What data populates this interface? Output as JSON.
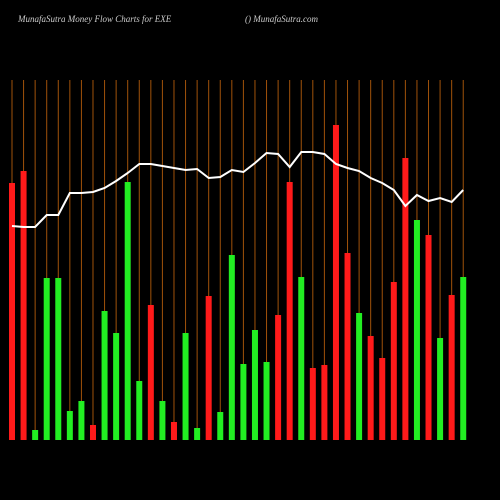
{
  "chart_data": {
    "type": "bar",
    "title": "MunafaSutra  Money Flow  Charts for EXE",
    "subtitle": "() MunafaSutra.com",
    "ylim": [
      0,
      360
    ],
    "grid_color": "#a0520a",
    "bars": {
      "values": [
        257,
        269,
        10,
        162,
        162,
        29,
        39,
        15,
        129,
        107,
        258,
        59,
        135,
        39,
        18,
        107,
        12,
        144,
        28,
        185,
        76,
        110,
        78,
        125,
        258,
        163,
        72,
        75,
        315,
        187,
        127,
        104,
        82,
        158,
        282,
        220,
        205,
        102,
        145,
        163
      ],
      "colors": [
        "#ff1a1a",
        "#ff1a1a",
        "#22ee22",
        "#22ee22",
        "#22ee22",
        "#22ee22",
        "#22ee22",
        "#ff1a1a",
        "#22ee22",
        "#22ee22",
        "#22ee22",
        "#22ee22",
        "#ff1a1a",
        "#22ee22",
        "#ff1a1a",
        "#22ee22",
        "#22ee22",
        "#ff1a1a",
        "#22ee22",
        "#22ee22",
        "#22ee22",
        "#22ee22",
        "#22ee22",
        "#ff1a1a",
        "#ff1a1a",
        "#22ee22",
        "#ff1a1a",
        "#ff1a1a",
        "#ff1a1a",
        "#ff1a1a",
        "#22ee22",
        "#ff1a1a",
        "#ff1a1a",
        "#ff1a1a",
        "#ff1a1a",
        "#22ee22",
        "#ff1a1a",
        "#22ee22",
        "#ff1a1a",
        "#22ee22"
      ]
    },
    "line": {
      "color": "#ffffff",
      "values": [
        214,
        213,
        213,
        225,
        225,
        247,
        247,
        248,
        252,
        259,
        267,
        276,
        276,
        274,
        272,
        270,
        271,
        262,
        263,
        270,
        268,
        277,
        287,
        286,
        273,
        288,
        288,
        286,
        276,
        272,
        269,
        262,
        257,
        250,
        234,
        245,
        239,
        242,
        238,
        250
      ]
    }
  }
}
